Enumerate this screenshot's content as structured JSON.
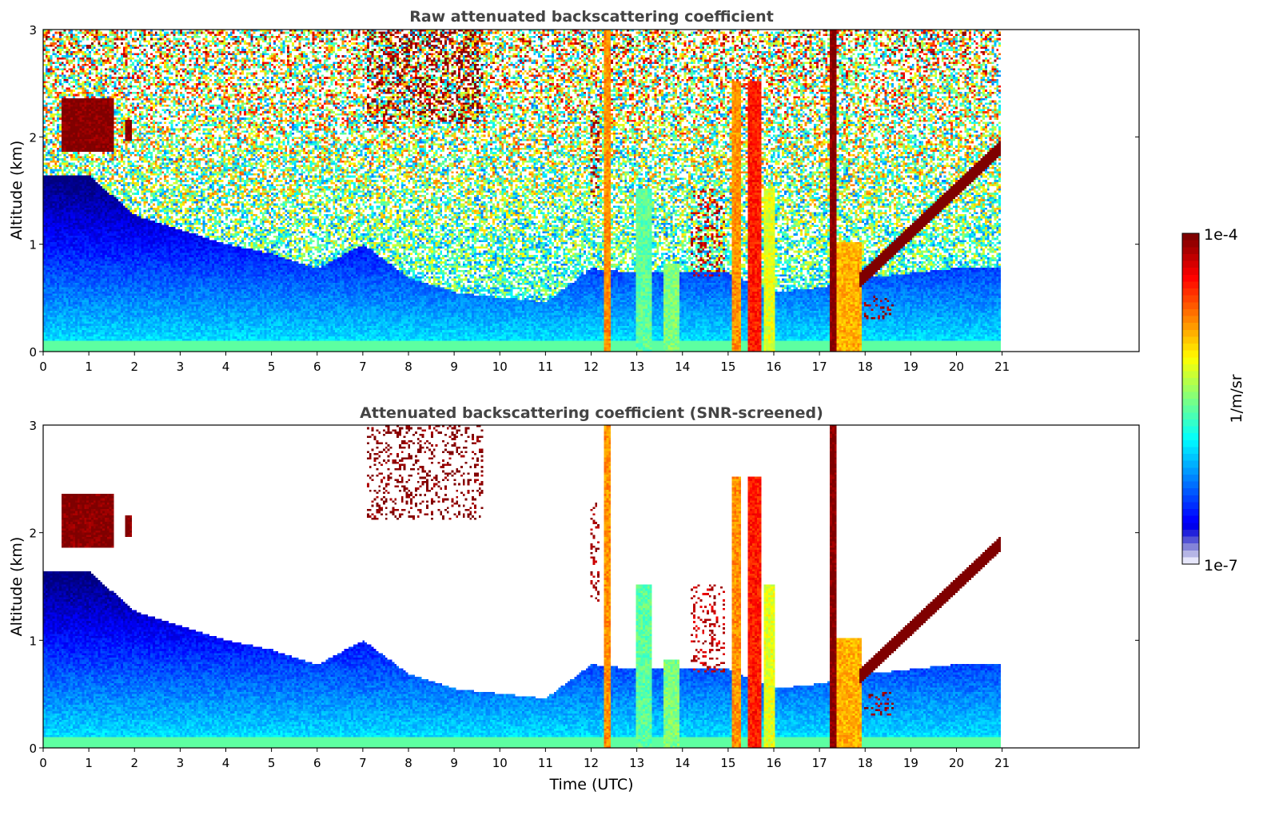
{
  "chart_data": [
    {
      "type": "heatmap",
      "title": "Raw attenuated backscattering coefficient",
      "xlabel": "",
      "ylabel": "Altitude (km)",
      "xlim": [
        0,
        24
      ],
      "ylim": [
        0,
        3
      ],
      "xticks": [
        0,
        1,
        2,
        3,
        4,
        5,
        6,
        7,
        8,
        9,
        10,
        11,
        12,
        13,
        14,
        15,
        16,
        17,
        18,
        19,
        20,
        21
      ],
      "yticks": [
        0,
        1,
        2
      ],
      "yticks_top": "3",
      "data_end_hour": 21,
      "screened": false
    },
    {
      "type": "heatmap",
      "title": "Attenuated backscattering coefficient (SNR-screened)",
      "xlabel": "Time (UTC)",
      "ylabel": "Altitude (km)",
      "xlim": [
        0,
        24
      ],
      "ylim": [
        0,
        3
      ],
      "xticks": [
        0,
        1,
        2,
        3,
        4,
        5,
        6,
        7,
        8,
        9,
        10,
        11,
        12,
        13,
        14,
        15,
        16,
        17,
        18,
        19,
        20,
        21
      ],
      "yticks": [
        0,
        1,
        2
      ],
      "yticks_top": "3",
      "data_end_hour": 21,
      "screened": true
    }
  ],
  "colorbar": {
    "label": "1/m/sr",
    "min_label": "1e-7",
    "max_label": "1e-4",
    "log_min": -7,
    "log_max": -4,
    "colormap": "jet"
  },
  "features": [
    {
      "t": [
        0.4,
        1.5
      ],
      "z": [
        1.85,
        2.35
      ],
      "log": -4.0
    },
    {
      "t": [
        1.8,
        1.95
      ],
      "z": [
        1.95,
        2.15
      ],
      "log": -4.0
    },
    {
      "t": [
        7.1,
        9.6
      ],
      "z": [
        2.1,
        3.0
      ],
      "log": -4.0,
      "sparse": true
    },
    {
      "t": [
        12.3,
        12.4
      ],
      "z": [
        0,
        3.0
      ],
      "log": -4.8
    },
    {
      "t": [
        12.0,
        12.2
      ],
      "z": [
        1.35,
        2.3
      ],
      "log": -4.1,
      "sparse": true
    },
    {
      "t": [
        13.0,
        13.3
      ],
      "z": [
        0,
        1.5
      ],
      "log": -5.6
    },
    {
      "t": [
        13.6,
        13.9
      ],
      "z": [
        0,
        0.8
      ],
      "log": -5.5
    },
    {
      "t": [
        14.2,
        14.9
      ],
      "z": [
        0.7,
        1.5
      ],
      "log": -4.2,
      "sparse": true
    },
    {
      "t": [
        15.1,
        15.25
      ],
      "z": [
        0,
        2.5
      ],
      "log": -4.8
    },
    {
      "t": [
        15.4,
        15.7
      ],
      "z": [
        0,
        2.5
      ],
      "log": -4.45
    },
    {
      "t": [
        15.8,
        16.0
      ],
      "z": [
        0,
        1.5
      ],
      "log": -5.2
    },
    {
      "t": [
        17.25,
        17.35
      ],
      "z": [
        0,
        3.0
      ],
      "log": -4.0
    },
    {
      "t": [
        17.4,
        17.9
      ],
      "z": [
        0,
        1.0
      ],
      "log": -4.9
    },
    {
      "t": [
        18.0,
        18.6
      ],
      "z": [
        0.3,
        0.5
      ],
      "log": -4.1,
      "sparse": true
    }
  ],
  "aerosol_layer": {
    "t": [
      17.9,
      21
    ],
    "z_start": 0.65,
    "z_end": 1.9,
    "log": -4.0
  },
  "snr_boundary_km": [
    1.8,
    1.8,
    1.4,
    1.25,
    1.1,
    1.0,
    0.85,
    1.1,
    0.75,
    0.6,
    0.55,
    0.5,
    0.85,
    0.8,
    0.8,
    0.8,
    0.6,
    0.65,
    0.75,
    0.8,
    0.85,
    0.85
  ]
}
